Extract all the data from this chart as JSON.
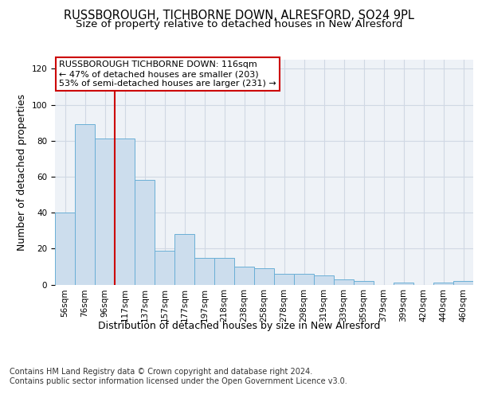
{
  "title": "RUSSBOROUGH, TICHBORNE DOWN, ALRESFORD, SO24 9PL",
  "subtitle": "Size of property relative to detached houses in New Alresford",
  "xlabel": "Distribution of detached houses by size in New Alresford",
  "ylabel": "Number of detached properties",
  "footer_line1": "Contains HM Land Registry data © Crown copyright and database right 2024.",
  "footer_line2": "Contains public sector information licensed under the Open Government Licence v3.0.",
  "categories": [
    "56sqm",
    "76sqm",
    "96sqm",
    "117sqm",
    "137sqm",
    "157sqm",
    "177sqm",
    "197sqm",
    "218sqm",
    "238sqm",
    "258sqm",
    "278sqm",
    "298sqm",
    "319sqm",
    "339sqm",
    "359sqm",
    "379sqm",
    "399sqm",
    "420sqm",
    "440sqm",
    "460sqm"
  ],
  "values": [
    40,
    89,
    81,
    81,
    58,
    19,
    28,
    15,
    15,
    10,
    9,
    6,
    6,
    5,
    3,
    2,
    0,
    1,
    0,
    1,
    2
  ],
  "bar_color": "#ccdded",
  "bar_edge_color": "#6aafd6",
  "vline_color": "#cc0000",
  "annotation_text": "RUSSBOROUGH TICHBORNE DOWN: 116sqm\n← 47% of detached houses are smaller (203)\n53% of semi-detached houses are larger (231) →",
  "annotation_box_color": "#ffffff",
  "annotation_box_edge_color": "#cc0000",
  "ylim": [
    0,
    125
  ],
  "yticks": [
    0,
    20,
    40,
    60,
    80,
    100,
    120
  ],
  "grid_color": "#d0d8e4",
  "bg_color": "#eef2f7",
  "title_fontsize": 10.5,
  "subtitle_fontsize": 9.5,
  "axis_label_fontsize": 9,
  "tick_fontsize": 7.5,
  "footer_fontsize": 7,
  "annotation_fontsize": 8
}
